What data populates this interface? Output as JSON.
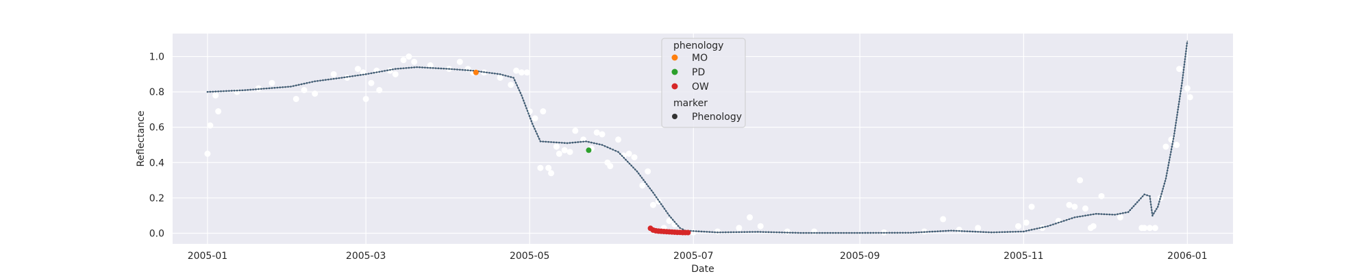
{
  "chart_data": {
    "type": "line",
    "title": "",
    "xlabel": "Date",
    "ylabel": "Reflectance",
    "x_axis_type": "date",
    "xlim": [
      "2004-12-19",
      "2006-01-18"
    ],
    "ylim": [
      -0.06,
      1.13
    ],
    "x_ticks": [
      {
        "date": "2005-01-01",
        "label": "2005-01"
      },
      {
        "date": "2005-03-01",
        "label": "2005-03"
      },
      {
        "date": "2005-05-01",
        "label": "2005-05"
      },
      {
        "date": "2005-07-01",
        "label": "2005-07"
      },
      {
        "date": "2005-09-01",
        "label": "2005-09"
      },
      {
        "date": "2005-11-01",
        "label": "2005-11"
      },
      {
        "date": "2006-01-01",
        "label": "2006-01"
      }
    ],
    "y_ticks": [
      {
        "value": 0.0,
        "label": "0.0"
      },
      {
        "value": 0.2,
        "label": "0.2"
      },
      {
        "value": 0.4,
        "label": "0.4"
      },
      {
        "value": 0.6,
        "label": "0.6"
      },
      {
        "value": 0.8,
        "label": "0.8"
      },
      {
        "value": 1.0,
        "label": "1.0"
      }
    ],
    "grid": true,
    "colors": {
      "plot_bg": "#eaeaf2",
      "grid": "#ffffff",
      "line": "#5a6b78",
      "markers": "#3d5a73",
      "observations": "#ffffff",
      "MO": "#ff7f0e",
      "PD": "#2ca02c",
      "OW": "#d62728",
      "legend_marker": "#333333"
    },
    "legend": {
      "placement": "upper-center",
      "title": "phenology",
      "entries": [
        {
          "label": "MO",
          "color": "#ff7f0e"
        },
        {
          "label": "PD",
          "color": "#2ca02c"
        },
        {
          "label": "OW",
          "color": "#d62728"
        }
      ],
      "marker_title": "marker",
      "marker_entries": [
        {
          "label": "Phenology",
          "color": "#333333"
        }
      ]
    },
    "smoothed_curve": [
      [
        "2005-01-01",
        0.8
      ],
      [
        "2005-01-15",
        0.81
      ],
      [
        "2005-02-01",
        0.83
      ],
      [
        "2005-02-10",
        0.86
      ],
      [
        "2005-02-20",
        0.88
      ],
      [
        "2005-03-01",
        0.9
      ],
      [
        "2005-03-12",
        0.93
      ],
      [
        "2005-03-20",
        0.94
      ],
      [
        "2005-04-01",
        0.93
      ],
      [
        "2005-04-10",
        0.92
      ],
      [
        "2005-04-20",
        0.9
      ],
      [
        "2005-04-25",
        0.88
      ],
      [
        "2005-04-28",
        0.78
      ],
      [
        "2005-05-02",
        0.62
      ],
      [
        "2005-05-05",
        0.52
      ],
      [
        "2005-05-15",
        0.51
      ],
      [
        "2005-05-22",
        0.52
      ],
      [
        "2005-05-28",
        0.5
      ],
      [
        "2005-06-03",
        0.46
      ],
      [
        "2005-06-10",
        0.35
      ],
      [
        "2005-06-16",
        0.23
      ],
      [
        "2005-06-22",
        0.1
      ],
      [
        "2005-06-26",
        0.03
      ],
      [
        "2005-06-28",
        0.015
      ],
      [
        "2005-07-10",
        0.005
      ],
      [
        "2005-07-25",
        0.008
      ],
      [
        "2005-08-10",
        0.002
      ],
      [
        "2005-09-01",
        0.002
      ],
      [
        "2005-09-20",
        0.003
      ],
      [
        "2005-10-05",
        0.015
      ],
      [
        "2005-10-20",
        0.005
      ],
      [
        "2005-11-01",
        0.01
      ],
      [
        "2005-11-10",
        0.04
      ],
      [
        "2005-11-20",
        0.09
      ],
      [
        "2005-11-28",
        0.11
      ],
      [
        "2005-12-05",
        0.105
      ],
      [
        "2005-12-10",
        0.12
      ],
      [
        "2005-12-16",
        0.22
      ],
      [
        "2005-12-18",
        0.21
      ],
      [
        "2005-12-19",
        0.1
      ],
      [
        "2005-12-21",
        0.15
      ],
      [
        "2005-12-24",
        0.31
      ],
      [
        "2005-12-27",
        0.55
      ],
      [
        "2005-12-30",
        0.85
      ],
      [
        "2006-01-01",
        1.09
      ]
    ],
    "observations": [
      [
        "2005-01-01",
        0.45
      ],
      [
        "2005-01-02",
        0.61
      ],
      [
        "2005-01-04",
        0.78
      ],
      [
        "2005-01-05",
        0.69
      ],
      [
        "2005-01-12",
        0.8
      ],
      [
        "2005-01-20",
        0.82
      ],
      [
        "2005-01-25",
        0.85
      ],
      [
        "2005-02-03",
        0.76
      ],
      [
        "2005-02-06",
        0.81
      ],
      [
        "2005-02-10",
        0.79
      ],
      [
        "2005-02-17",
        0.9
      ],
      [
        "2005-02-22",
        0.88
      ],
      [
        "2005-02-26",
        0.93
      ],
      [
        "2005-02-28",
        0.91
      ],
      [
        "2005-03-01",
        0.76
      ],
      [
        "2005-03-03",
        0.85
      ],
      [
        "2005-03-05",
        0.92
      ],
      [
        "2005-03-06",
        0.81
      ],
      [
        "2005-03-10",
        0.92
      ],
      [
        "2005-03-12",
        0.9
      ],
      [
        "2005-03-15",
        0.98
      ],
      [
        "2005-03-17",
        1.0
      ],
      [
        "2005-03-19",
        0.97
      ],
      [
        "2005-03-25",
        0.95
      ],
      [
        "2005-04-01",
        0.93
      ],
      [
        "2005-04-05",
        0.97
      ],
      [
        "2005-04-08",
        0.93
      ],
      [
        "2005-04-10",
        0.91
      ],
      [
        "2005-04-14",
        0.91
      ],
      [
        "2005-04-20",
        0.88
      ],
      [
        "2005-04-24",
        0.84
      ],
      [
        "2005-04-26",
        0.92
      ],
      [
        "2005-04-28",
        0.91
      ],
      [
        "2005-04-30",
        0.91
      ],
      [
        "2005-05-01",
        0.69
      ],
      [
        "2005-05-03",
        0.65
      ],
      [
        "2005-05-05",
        0.37
      ],
      [
        "2005-05-06",
        0.69
      ],
      [
        "2005-05-08",
        0.37
      ],
      [
        "2005-05-09",
        0.34
      ],
      [
        "2005-05-11",
        0.49
      ],
      [
        "2005-05-12",
        0.45
      ],
      [
        "2005-05-14",
        0.47
      ],
      [
        "2005-05-16",
        0.46
      ],
      [
        "2005-05-18",
        0.58
      ],
      [
        "2005-05-21",
        0.53
      ],
      [
        "2005-05-24",
        0.48
      ],
      [
        "2005-05-26",
        0.57
      ],
      [
        "2005-05-28",
        0.56
      ],
      [
        "2005-05-30",
        0.4
      ],
      [
        "2005-05-31",
        0.38
      ],
      [
        "2005-06-03",
        0.53
      ],
      [
        "2005-06-05",
        0.44
      ],
      [
        "2005-06-07",
        0.45
      ],
      [
        "2005-06-09",
        0.43
      ],
      [
        "2005-06-12",
        0.27
      ],
      [
        "2005-06-14",
        0.35
      ],
      [
        "2005-06-16",
        0.16
      ],
      [
        "2005-06-18",
        0.18
      ],
      [
        "2005-06-20",
        0.03
      ],
      [
        "2005-06-22",
        0.07
      ],
      [
        "2005-06-24",
        0.05
      ],
      [
        "2005-06-26",
        0.01
      ],
      [
        "2005-07-01",
        0.005
      ],
      [
        "2005-07-10",
        0.01
      ],
      [
        "2005-07-18",
        0.03
      ],
      [
        "2005-07-22",
        0.09
      ],
      [
        "2005-07-26",
        0.04
      ],
      [
        "2005-08-05",
        0.01
      ],
      [
        "2005-08-15",
        0.01
      ],
      [
        "2005-09-10",
        0.005
      ],
      [
        "2005-09-25",
        0.01
      ],
      [
        "2005-10-02",
        0.08
      ],
      [
        "2005-10-08",
        0.02
      ],
      [
        "2005-10-15",
        0.03
      ],
      [
        "2005-10-30",
        0.04
      ],
      [
        "2005-11-02",
        0.06
      ],
      [
        "2005-11-04",
        0.15
      ],
      [
        "2005-11-08",
        0.03
      ],
      [
        "2005-11-14",
        0.07
      ],
      [
        "2005-11-18",
        0.16
      ],
      [
        "2005-11-20",
        0.15
      ],
      [
        "2005-11-22",
        0.3
      ],
      [
        "2005-11-24",
        0.14
      ],
      [
        "2005-11-26",
        0.03
      ],
      [
        "2005-11-27",
        0.04
      ],
      [
        "2005-11-30",
        0.21
      ],
      [
        "2005-12-07",
        0.09
      ],
      [
        "2005-12-15",
        0.03
      ],
      [
        "2005-12-16",
        0.03
      ],
      [
        "2005-12-18",
        0.03
      ],
      [
        "2005-12-20",
        0.03
      ],
      [
        "2005-12-22",
        0.2
      ],
      [
        "2005-12-24",
        0.49
      ],
      [
        "2005-12-26",
        0.53
      ],
      [
        "2005-12-28",
        0.5
      ],
      [
        "2005-12-29",
        0.93
      ],
      [
        "2006-01-01",
        0.82
      ],
      [
        "2006-01-02",
        0.77
      ]
    ],
    "phenology_points": [
      {
        "label": "MO",
        "points": [
          [
            "2005-04-11",
            0.91
          ]
        ]
      },
      {
        "label": "PD",
        "points": [
          [
            "2005-05-23",
            0.47
          ]
        ]
      },
      {
        "label": "OW",
        "points": [
          [
            "2005-06-15",
            0.028
          ],
          [
            "2005-06-16",
            0.018
          ],
          [
            "2005-06-17",
            0.014
          ],
          [
            "2005-06-18",
            0.012
          ],
          [
            "2005-06-19",
            0.011
          ],
          [
            "2005-06-20",
            0.01
          ],
          [
            "2005-06-21",
            0.009
          ],
          [
            "2005-06-22",
            0.008
          ],
          [
            "2005-06-23",
            0.007
          ],
          [
            "2005-06-24",
            0.006
          ],
          [
            "2005-06-25",
            0.005
          ],
          [
            "2005-06-26",
            0.005
          ],
          [
            "2005-06-27",
            0.004
          ],
          [
            "2005-06-28",
            0.004
          ],
          [
            "2005-06-29",
            0.004
          ]
        ]
      }
    ]
  }
}
